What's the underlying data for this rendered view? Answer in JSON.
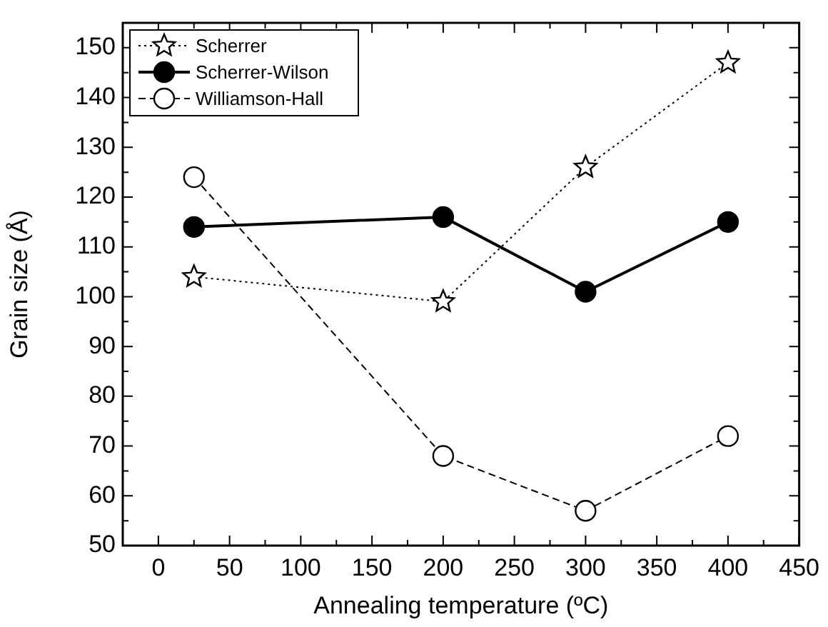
{
  "chart_data": {
    "type": "line",
    "xlabel": "Annealing temperature (ºC)",
    "ylabel": "Grain size (Å)",
    "x": [
      25,
      200,
      300,
      400
    ],
    "series": [
      {
        "name": "Scherrer",
        "color": "#000000",
        "values": [
          104,
          99,
          126,
          147
        ],
        "marker": "star",
        "line_style": "dotted"
      },
      {
        "name": "Scherrer-Wilson",
        "color": "#000000",
        "values": [
          114,
          116,
          101,
          115
        ],
        "marker": "circle",
        "line_style": "solid"
      },
      {
        "name": "Williamson-Hall",
        "color": "#000000",
        "values": [
          124,
          68,
          57,
          72
        ],
        "marker": "circle",
        "line_style": "dashed"
      }
    ],
    "xlim": [
      -25,
      450
    ],
    "xticks": [
      0,
      {
        "value": 25,
        "label": null
      },
      50,
      {
        "value": 75,
        "label": null
      },
      100,
      {
        "value": 125,
        "label": null
      },
      150,
      {
        "value": 175,
        "label": null
      },
      200,
      {
        "value": 225,
        "label": null
      },
      250,
      {
        "value": 275,
        "label": null
      },
      300,
      {
        "value": 325,
        "label": null
      },
      350,
      {
        "value": 375,
        "label": null
      },
      400,
      {
        "value": 425,
        "label": null
      },
      450
    ],
    "ylim": [
      50,
      155
    ],
    "yticks": [
      50,
      {
        "value": 55,
        "label": null
      },
      60,
      {
        "value": 65,
        "label": null
      },
      70,
      {
        "value": 75,
        "label": null
      },
      80,
      {
        "value": 85,
        "label": null
      },
      90,
      {
        "value": 95,
        "label": null
      },
      100,
      {
        "value": 105,
        "label": null
      },
      110,
      {
        "value": 115,
        "label": null
      },
      120,
      {
        "value": 125,
        "label": null
      },
      130,
      {
        "value": 135,
        "label": null
      },
      140,
      {
        "value": 145,
        "label": null
      },
      150
    ],
    "grid": false,
    "legend": "top left"
  }
}
